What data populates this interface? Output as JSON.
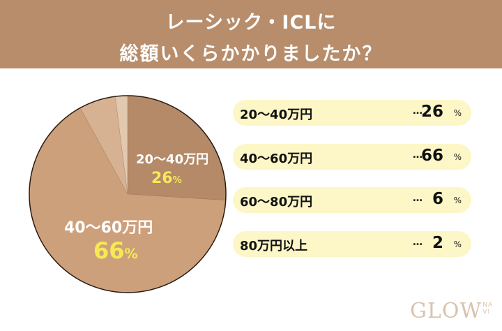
{
  "header": {
    "line1": "レーシック・ICLに",
    "line2": "総額いくらかかりましたか？",
    "background": "#b78d6b"
  },
  "pie": {
    "labels": [
      {
        "category": "20〜40万円",
        "percent": "26",
        "unit": "%"
      },
      {
        "category": "40〜60万円",
        "percent": "66",
        "unit": "%"
      }
    ]
  },
  "legend": {
    "rows": [
      {
        "category": "20〜40万円",
        "dots": "…",
        "value": "26",
        "unit": "%"
      },
      {
        "category": "40〜60万円",
        "dots": "…",
        "value": "66",
        "unit": "%"
      },
      {
        "category": "60〜80万円",
        "dots": "…",
        "value": "6",
        "unit": "%"
      },
      {
        "category": "80万円以上",
        "dots": "…",
        "value": "2",
        "unit": "%"
      }
    ]
  },
  "logo": {
    "main": "GLOW",
    "sub_top": "NA",
    "sub_bottom": "VI"
  },
  "chart_data": {
    "type": "pie",
    "title": "レーシック・ICLに総額いくらかかりましたか？",
    "categories": [
      "20〜40万円",
      "40〜60万円",
      "60〜80万円",
      "80万円以上"
    ],
    "values": [
      26,
      66,
      6,
      2
    ],
    "unit": "%",
    "colors": [
      "#b48a68",
      "#cda07c",
      "#d6b293",
      "#e3c8b0"
    ],
    "start_angle": "12 o'clock, clockwise",
    "legend_position": "right"
  }
}
